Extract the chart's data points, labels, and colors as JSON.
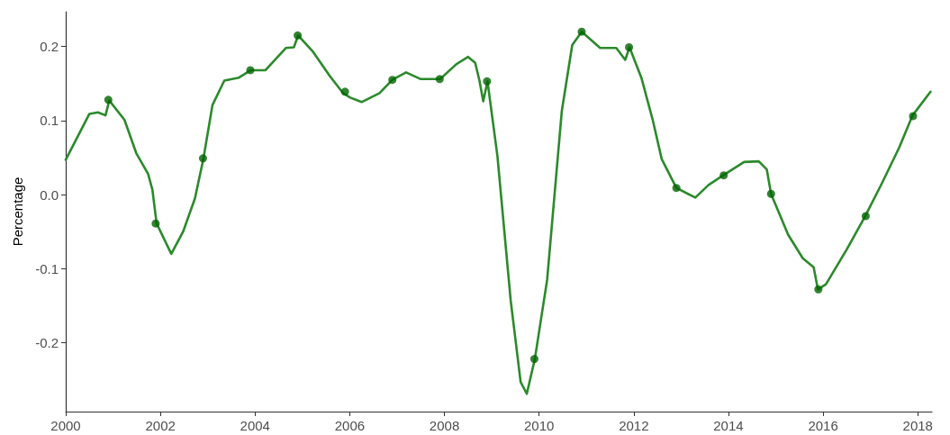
{
  "chart_data": {
    "type": "line",
    "ylabel": "Percentage",
    "xlim": [
      2000,
      2018.3
    ],
    "xticks": [
      2000,
      2002,
      2004,
      2006,
      2008,
      2010,
      2012,
      2014,
      2016,
      2018
    ],
    "ylim": [
      -0.293,
      0.247
    ],
    "yticks": [
      {
        "value": -0.2,
        "label": "-0.2"
      },
      {
        "value": -0.1,
        "label": "-0.1"
      },
      {
        "value": 0,
        "label": "0.0"
      },
      {
        "value": 0.1,
        "label": "0.1"
      },
      {
        "value": 0.2,
        "label": "0.2"
      }
    ],
    "grid": false,
    "series": [
      {
        "type": "line",
        "color": "#2b8a2b",
        "marker": "none",
        "line_style": "solid",
        "x": [
          2000,
          2000.5,
          2000.68,
          2000.84,
          2000.92,
          2001.24,
          2001.49,
          2001.74,
          2001.83,
          2001.92,
          2002.23,
          2002.48,
          2002.73,
          2002.91,
          2003.1,
          2003.35,
          2003.66,
          2003.91,
          2004.22,
          2004.65,
          2004.82,
          2004.91,
          2005.21,
          2005.58,
          2005.86,
          2006.01,
          2006.25,
          2006.63,
          2006.9,
          2007.19,
          2007.5,
          2007.91,
          2008.25,
          2008.5,
          2008.65,
          2008.74,
          2008.82,
          2008.91,
          2009.12,
          2009.4,
          2009.61,
          2009.74,
          2009.91,
          2010.17,
          2010.48,
          2010.7,
          2010.9,
          2011.29,
          2011.63,
          2011.82,
          2011.91,
          2012.16,
          2012.4,
          2012.59,
          2012.9,
          2013.3,
          2013.58,
          2013.89,
          2014.33,
          2014.64,
          2014.81,
          2014.9,
          2015.26,
          2015.57,
          2015.8,
          2015.89,
          2016.06,
          2016.5,
          2016.89,
          2017.24,
          2017.61,
          2017.89,
          2018.27
        ],
        "values": [
          0.047,
          0.109,
          0.111,
          0.107,
          0.127,
          0.101,
          0.056,
          0.028,
          0.007,
          -0.039,
          -0.08,
          -0.05,
          -0.005,
          0.049,
          0.121,
          0.154,
          0.158,
          0.168,
          0.168,
          0.198,
          0.199,
          0.215,
          0.194,
          0.16,
          0.137,
          0.131,
          0.125,
          0.137,
          0.155,
          0.165,
          0.156,
          0.156,
          0.176,
          0.186,
          0.178,
          0.154,
          0.126,
          0.153,
          0.052,
          -0.143,
          -0.253,
          -0.269,
          -0.222,
          -0.115,
          0.113,
          0.202,
          0.22,
          0.198,
          0.198,
          0.182,
          0.199,
          0.158,
          0.101,
          0.048,
          0.009,
          -0.004,
          0.013,
          0.026,
          0.044,
          0.045,
          0.034,
          0.001,
          -0.054,
          -0.086,
          -0.098,
          -0.128,
          -0.121,
          -0.074,
          -0.029,
          0.015,
          0.064,
          0.107,
          0.139
        ]
      },
      {
        "type": "scatter",
        "color": "#006400",
        "marker": "circle",
        "x": [
          2000.9,
          2001.9,
          2002.9,
          2003.9,
          2004.9,
          2005.9,
          2006.9,
          2007.9,
          2008.9,
          2009.9,
          2010.9,
          2011.9,
          2012.9,
          2013.9,
          2014.9,
          2015.9,
          2016.9,
          2017.9
        ],
        "values": [
          0.128,
          -0.039,
          0.049,
          0.168,
          0.215,
          0.139,
          0.155,
          0.156,
          0.153,
          -0.222,
          0.22,
          0.199,
          0.009,
          0.026,
          0.001,
          -0.128,
          -0.029,
          0.106
        ]
      }
    ]
  }
}
